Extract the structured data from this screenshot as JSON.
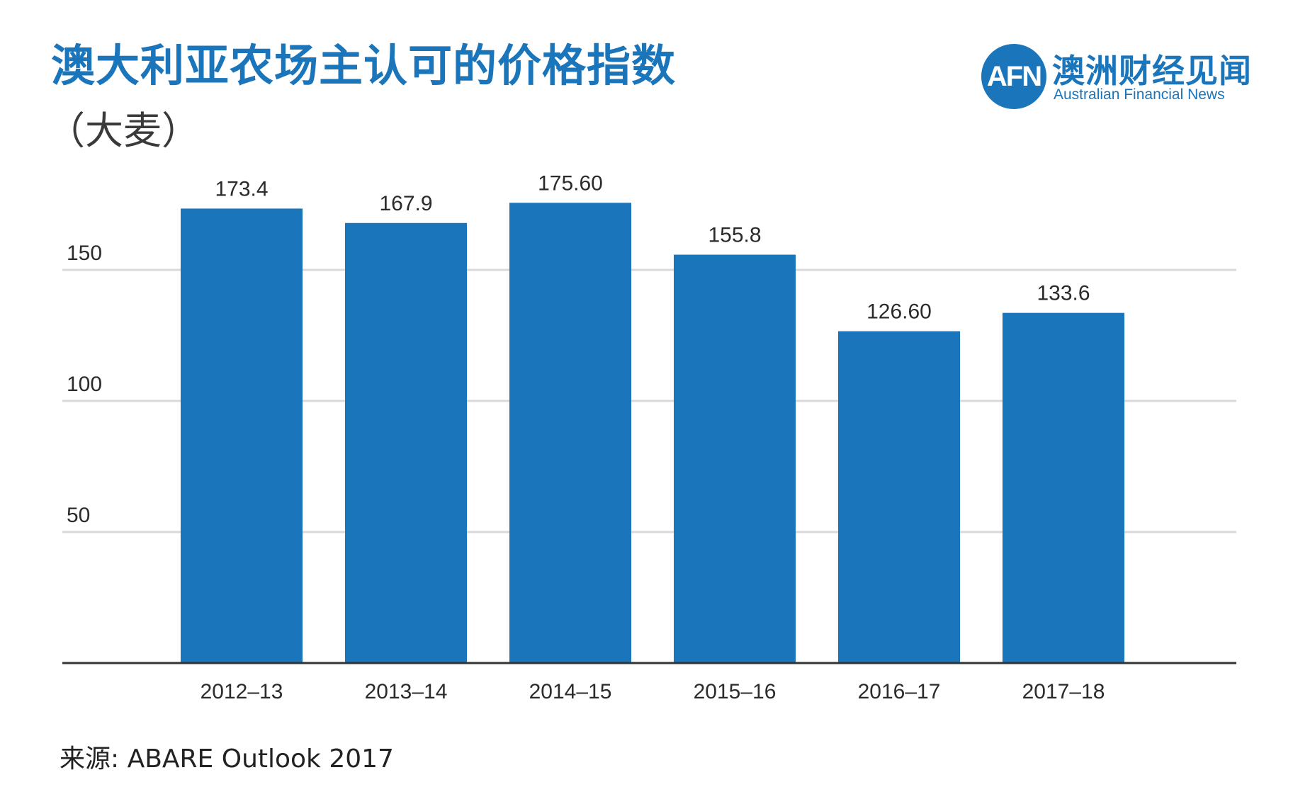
{
  "title": "澳大利亚农场主认可的价格指数",
  "subtitle": "（大麦）",
  "logo": {
    "mark": "AFN",
    "name_cn": "澳洲财经见闻",
    "name_en": "Australian Financial News"
  },
  "source": "来源: ABARE Outlook 2017",
  "colors": {
    "bar": "#1b75bb",
    "title": "#1b75bb",
    "grid": "#d9d9d9",
    "axis": "#333333"
  },
  "chart_data": {
    "type": "bar",
    "categories": [
      "2012–13",
      "2013–14",
      "2014–15",
      "2015–16",
      "2016–17",
      "2017–18"
    ],
    "values": [
      173.4,
      167.9,
      175.6,
      155.8,
      126.6,
      133.6
    ],
    "value_labels": [
      "173.4",
      "167.9",
      "175.60",
      "155.8",
      "126.60",
      "133.6"
    ],
    "yticks": [
      50,
      100,
      150
    ],
    "ylim": [
      0,
      200
    ],
    "grid": true,
    "legend": "none"
  }
}
